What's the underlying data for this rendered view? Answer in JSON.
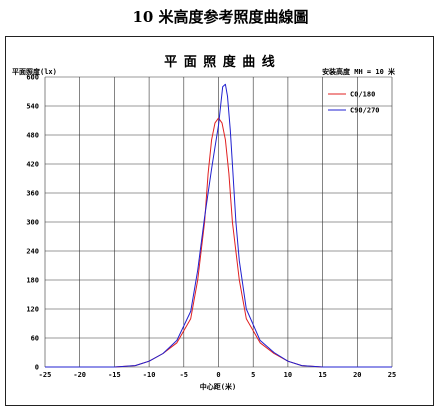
{
  "page_title": "10 米高度参考照度曲線圖",
  "chart_data": {
    "type": "line",
    "title": "平 面 照 度 曲 线",
    "ylabel": "平面照度(lx)",
    "xlabel": "中心距(米)",
    "mount_label": "安装高度 MH = 10 米",
    "xlim": [
      -25,
      25
    ],
    "ylim": [
      0,
      600
    ],
    "x_ticks": [
      -25,
      -20,
      -15,
      -10,
      -5,
      0,
      5,
      10,
      15,
      20,
      25
    ],
    "y_ticks": [
      0,
      60,
      120,
      180,
      240,
      300,
      360,
      420,
      480,
      540,
      600
    ],
    "grid": true,
    "legend_position": "top-right",
    "series": [
      {
        "name": "C0/180",
        "color": "#e02020",
        "x": [
          -25,
          -15,
          -12,
          -10,
          -8,
          -6,
          -4,
          -3,
          -2,
          -1.5,
          -1,
          -0.5,
          0,
          0.5,
          1,
          1.5,
          2,
          3,
          4,
          6,
          8,
          10,
          12,
          15,
          25
        ],
        "y": [
          0,
          0,
          3,
          12,
          28,
          50,
          100,
          180,
          300,
          400,
          470,
          505,
          515,
          505,
          470,
          400,
          300,
          180,
          100,
          50,
          28,
          12,
          3,
          0,
          0
        ]
      },
      {
        "name": "C90/270",
        "color": "#2020d0",
        "x": [
          -25,
          -15,
          -12,
          -10,
          -8,
          -6,
          -4,
          -3,
          -2,
          -1,
          -0.5,
          0,
          0.3,
          0.6,
          1,
          1.3,
          1.7,
          2,
          2.5,
          3,
          4,
          6,
          8,
          10,
          12,
          15,
          25
        ],
        "y": [
          0,
          0,
          3,
          12,
          28,
          55,
          115,
          200,
          310,
          410,
          455,
          500,
          540,
          580,
          585,
          560,
          490,
          420,
          300,
          220,
          120,
          55,
          30,
          12,
          3,
          0,
          0
        ]
      }
    ]
  }
}
